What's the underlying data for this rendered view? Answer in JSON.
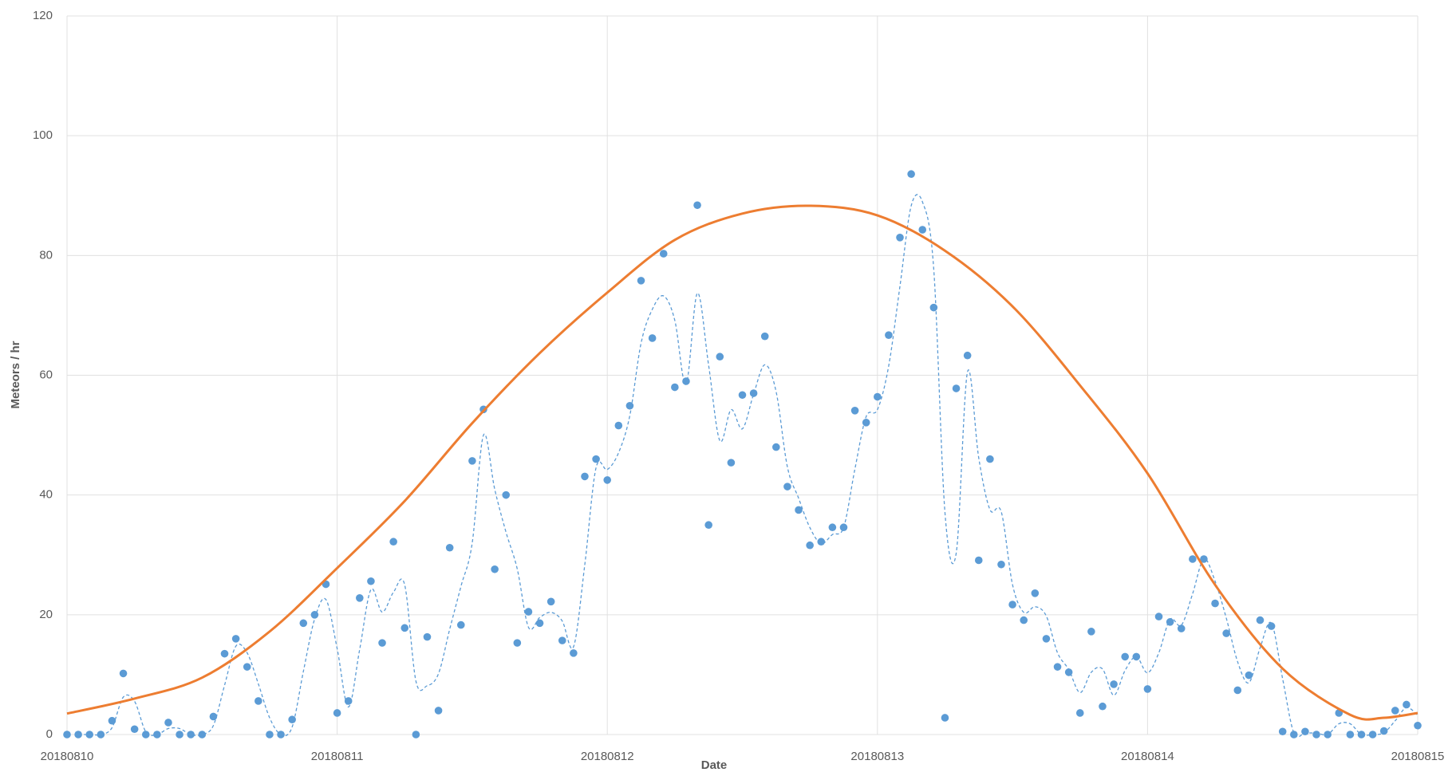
{
  "chart_data": {
    "type": "scatter",
    "xlabel": "Date",
    "ylabel": "Meteors / hr",
    "x": [
      0,
      1,
      2,
      3,
      4,
      5,
      6,
      7,
      8,
      9,
      10,
      11,
      12,
      13,
      14,
      15,
      16,
      17,
      18,
      19,
      20,
      21,
      22,
      23,
      24,
      25,
      26,
      27,
      28,
      29,
      30,
      31,
      32,
      33,
      34,
      35,
      36,
      37,
      38,
      39,
      40,
      41,
      42,
      43,
      44,
      45,
      46,
      47,
      48,
      49,
      50,
      51,
      52,
      53,
      54,
      55,
      56,
      57,
      58,
      59,
      60,
      61,
      62,
      63,
      64,
      65,
      66,
      67,
      68,
      69,
      70,
      71,
      72,
      73,
      74,
      75,
      76,
      77,
      78,
      79,
      80,
      81,
      82,
      83,
      84,
      85,
      86,
      87,
      88,
      89,
      90,
      91,
      92,
      93,
      94,
      95,
      96,
      97,
      98,
      99,
      100,
      101,
      102,
      103,
      104,
      105,
      106,
      107,
      108,
      109,
      110,
      111,
      112,
      113,
      114,
      115,
      116,
      117,
      118,
      119,
      120
    ],
    "series": [
      {
        "color": "#5b9bd5",
        "trendline": {
          "type": "moving_average",
          "period": 2,
          "dashed": true
        },
        "values": [
          0,
          0,
          0,
          0,
          2.3,
          10.2,
          0.9,
          0,
          0,
          2,
          0,
          0,
          0,
          3,
          13.5,
          16,
          11.3,
          5.6,
          0,
          0,
          2.5,
          18.6,
          20,
          25.1,
          3.6,
          5.6,
          22.8,
          25.6,
          15.3,
          32.2,
          17.8,
          0,
          16.3,
          4,
          31.2,
          18.3,
          45.7,
          54.3,
          27.6,
          40,
          15.3,
          20.5,
          18.6,
          22.2,
          15.7,
          13.6,
          43.1,
          46,
          42.5,
          51.6,
          54.9,
          75.8,
          66.2,
          80.3,
          58,
          59,
          88.4,
          35,
          63.1,
          45.4,
          56.7,
          57,
          66.5,
          48,
          41.4,
          37.5,
          31.6,
          32.2,
          34.6,
          34.6,
          54.1,
          52.1,
          56.4,
          66.7,
          83,
          93.6,
          84.3,
          71.3,
          2.8,
          57.8,
          63.3,
          29.1,
          46,
          28.4,
          21.7,
          19.1,
          23.6,
          16,
          11.3,
          10.4,
          3.6,
          17.2,
          4.7,
          8.4,
          13,
          13,
          7.6,
          19.7,
          18.8,
          17.7,
          29.3,
          29.3,
          21.9,
          16.9,
          7.4,
          9.9,
          19.1,
          18.1,
          0.5,
          0,
          0.5,
          0,
          0,
          3.6,
          0,
          0,
          0,
          0.6,
          4,
          5,
          1.5
        ]
      },
      {
        "type": "line",
        "color": "#ed7d31",
        "x": [
          0,
          6,
          12,
          18,
          24,
          30,
          36,
          42,
          48,
          54,
          60,
          66,
          72,
          78,
          84,
          90,
          96,
          102,
          108,
          114,
          117,
          120
        ],
        "values": [
          3.5,
          6,
          9.5,
          17.2,
          27.8,
          39,
          52,
          63.7,
          73.8,
          82.6,
          87,
          88.3,
          86.7,
          80.8,
          71.5,
          58.3,
          43.6,
          25,
          11,
          3.3,
          2.8,
          3.6
        ]
      }
    ],
    "xlim": [
      0,
      120
    ],
    "ylim": [
      0,
      120
    ],
    "xticks": [
      {
        "value": 0,
        "label": "20180810"
      },
      {
        "value": 24,
        "label": "20180811"
      },
      {
        "value": 48,
        "label": "20180812"
      },
      {
        "value": 72,
        "label": "20180813"
      },
      {
        "value": 96,
        "label": "20180814"
      },
      {
        "value": 120,
        "label": "20180815"
      }
    ],
    "yticks": [
      0,
      20,
      40,
      60,
      80,
      100,
      120
    ],
    "grid": true
  }
}
